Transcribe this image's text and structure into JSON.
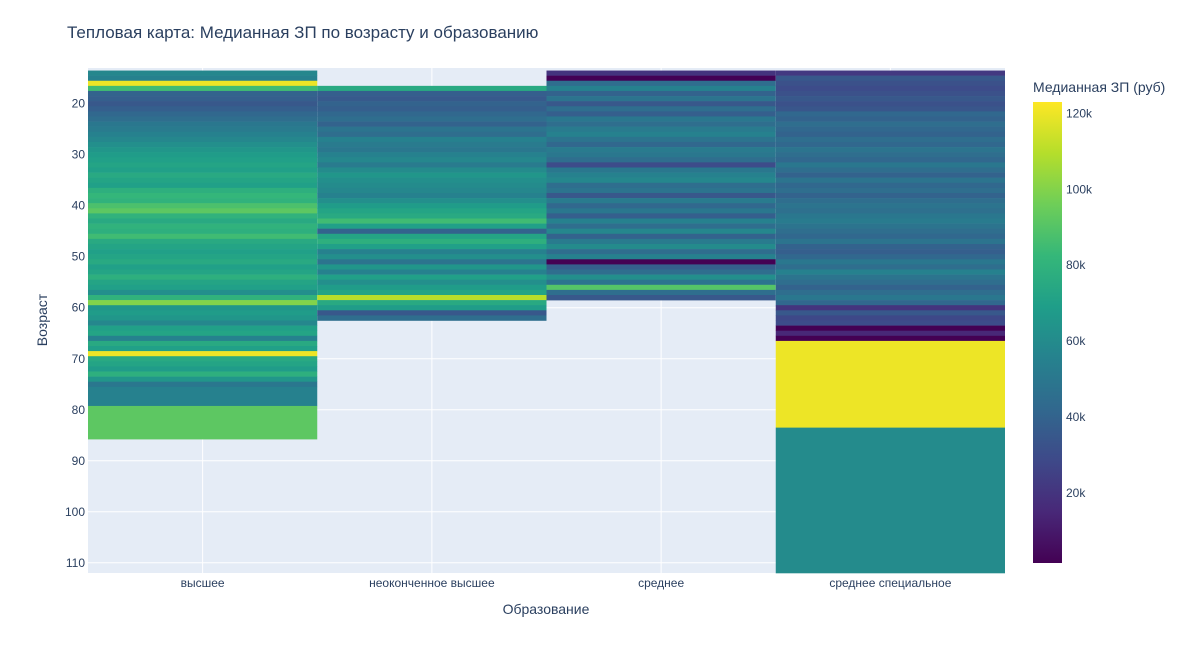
{
  "colors": {
    "background": "#ffffff",
    "plot_bg": "#e5ecf6",
    "grid": "#ffffff",
    "text": "#2a3f5f",
    "tick_text": "#506784",
    "viridis": [
      "#440154",
      "#482878",
      "#3e4989",
      "#31688e",
      "#26828e",
      "#1f9e89",
      "#35b779",
      "#6ece58",
      "#b5de2b",
      "#fde725"
    ]
  },
  "chart_data": {
    "type": "heatmap",
    "title": "Тепловая карта: Медианная ЗП по возрасту и образованию",
    "xlabel": "Образование",
    "ylabel": "Возраст",
    "categories": [
      "высшее",
      "неоконченное высшее",
      "среднее",
      "среднее специальное"
    ],
    "yticks": [
      20,
      30,
      40,
      50,
      60,
      70,
      80,
      90,
      100,
      110
    ],
    "ylim": [
      112,
      13
    ],
    "colorbar": {
      "title": "Медианная ЗП (руб)",
      "range": [
        1500,
        123000
      ],
      "ticks": [
        20000,
        40000,
        60000,
        80000,
        100000,
        120000
      ],
      "tick_labels": [
        "20k",
        "40k",
        "60k",
        "80k",
        "100k",
        "120k"
      ]
    },
    "grid": true,
    "columns": [
      {
        "name": "высшее",
        "cells": [
          [
            14,
            58000
          ],
          [
            15,
            55000
          ],
          [
            16,
            120000
          ],
          [
            17,
            85000
          ],
          [
            18,
            40000
          ],
          [
            19,
            38000
          ],
          [
            20,
            35000
          ],
          [
            21,
            38000
          ],
          [
            22,
            42000
          ],
          [
            23,
            45000
          ],
          [
            24,
            50000
          ],
          [
            25,
            52000
          ],
          [
            26,
            55000
          ],
          [
            27,
            58000
          ],
          [
            28,
            62000
          ],
          [
            29,
            65000
          ],
          [
            30,
            68000
          ],
          [
            31,
            70000
          ],
          [
            32,
            72000
          ],
          [
            33,
            70000
          ],
          [
            34,
            75000
          ],
          [
            35,
            72000
          ],
          [
            36,
            70000
          ],
          [
            37,
            78000
          ],
          [
            38,
            82000
          ],
          [
            39,
            80000
          ],
          [
            40,
            88000
          ],
          [
            41,
            92000
          ],
          [
            42,
            80000
          ],
          [
            43,
            75000
          ],
          [
            44,
            80000
          ],
          [
            45,
            78000
          ],
          [
            46,
            85000
          ],
          [
            47,
            75000
          ],
          [
            48,
            72000
          ],
          [
            49,
            70000
          ],
          [
            50,
            72000
          ],
          [
            51,
            75000
          ],
          [
            52,
            70000
          ],
          [
            53,
            72000
          ],
          [
            54,
            78000
          ],
          [
            55,
            72000
          ],
          [
            56,
            70000
          ],
          [
            57,
            62000
          ],
          [
            58,
            80000
          ],
          [
            59,
            100000
          ],
          [
            60,
            65000
          ],
          [
            61,
            68000
          ],
          [
            62,
            65000
          ],
          [
            63,
            58000
          ],
          [
            64,
            70000
          ],
          [
            65,
            72000
          ],
          [
            66,
            55000
          ],
          [
            67,
            75000
          ],
          [
            68,
            70000
          ],
          [
            69,
            120000
          ],
          [
            70,
            75000
          ],
          [
            71,
            72000
          ],
          [
            72,
            68000
          ],
          [
            73,
            78000
          ],
          [
            74,
            65000
          ],
          [
            75,
            50000
          ],
          [
            76,
            55000
          ],
          [
            82.5,
            92000
          ]
        ]
      },
      {
        "name": "неоконченное высшее",
        "cells": [
          [
            17,
            75000
          ],
          [
            18,
            38000
          ],
          [
            19,
            36000
          ],
          [
            20,
            40000
          ],
          [
            21,
            38000
          ],
          [
            22,
            42000
          ],
          [
            23,
            45000
          ],
          [
            24,
            40000
          ],
          [
            25,
            48000
          ],
          [
            26,
            45000
          ],
          [
            27,
            55000
          ],
          [
            28,
            52000
          ],
          [
            29,
            50000
          ],
          [
            30,
            55000
          ],
          [
            31,
            58000
          ],
          [
            32,
            52000
          ],
          [
            33,
            60000
          ],
          [
            34,
            65000
          ],
          [
            35,
            62000
          ],
          [
            36,
            60000
          ],
          [
            37,
            58000
          ],
          [
            38,
            55000
          ],
          [
            39,
            62000
          ],
          [
            40,
            68000
          ],
          [
            41,
            72000
          ],
          [
            42,
            75000
          ],
          [
            43,
            85000
          ],
          [
            44,
            70000
          ],
          [
            45,
            40000
          ],
          [
            46,
            72000
          ],
          [
            47,
            78000
          ],
          [
            48,
            70000
          ],
          [
            49,
            55000
          ],
          [
            50,
            62000
          ],
          [
            51,
            48000
          ],
          [
            52,
            65000
          ],
          [
            53,
            55000
          ],
          [
            54,
            70000
          ],
          [
            55,
            62000
          ],
          [
            56,
            68000
          ],
          [
            57,
            72000
          ],
          [
            58,
            110000
          ],
          [
            59,
            75000
          ],
          [
            60,
            68000
          ],
          [
            61,
            35000
          ],
          [
            62,
            45000
          ]
        ]
      },
      {
        "name": "среднее",
        "cells": [
          [
            14,
            20000
          ],
          [
            15,
            2000
          ],
          [
            16,
            45000
          ],
          [
            17,
            55000
          ],
          [
            18,
            40000
          ],
          [
            19,
            48000
          ],
          [
            20,
            35000
          ],
          [
            21,
            45000
          ],
          [
            22,
            38000
          ],
          [
            23,
            50000
          ],
          [
            24,
            45000
          ],
          [
            25,
            52000
          ],
          [
            26,
            55000
          ],
          [
            27,
            48000
          ],
          [
            28,
            42000
          ],
          [
            29,
            52000
          ],
          [
            30,
            50000
          ],
          [
            31,
            45000
          ],
          [
            32,
            30000
          ],
          [
            33,
            50000
          ],
          [
            34,
            55000
          ],
          [
            35,
            58000
          ],
          [
            36,
            45000
          ],
          [
            37,
            48000
          ],
          [
            38,
            35000
          ],
          [
            39,
            52000
          ],
          [
            40,
            42000
          ],
          [
            41,
            50000
          ],
          [
            42,
            38000
          ],
          [
            43,
            55000
          ],
          [
            44,
            45000
          ],
          [
            45,
            58000
          ],
          [
            46,
            40000
          ],
          [
            47,
            52000
          ],
          [
            48,
            60000
          ],
          [
            49,
            45000
          ],
          [
            50,
            55000
          ],
          [
            51,
            1500
          ],
          [
            52,
            38000
          ],
          [
            53,
            45000
          ],
          [
            54,
            62000
          ],
          [
            55,
            48000
          ],
          [
            56,
            90000
          ],
          [
            57,
            45000
          ],
          [
            58,
            35000
          ]
        ]
      },
      {
        "name": "среднее специальное",
        "cells": [
          [
            14,
            22000
          ],
          [
            15,
            35000
          ],
          [
            16,
            32000
          ],
          [
            17,
            30000
          ],
          [
            18,
            32000
          ],
          [
            19,
            35000
          ],
          [
            20,
            32000
          ],
          [
            21,
            34000
          ],
          [
            22,
            42000
          ],
          [
            23,
            40000
          ],
          [
            24,
            45000
          ],
          [
            25,
            42000
          ],
          [
            26,
            40000
          ],
          [
            27,
            45000
          ],
          [
            28,
            42000
          ],
          [
            29,
            48000
          ],
          [
            30,
            45000
          ],
          [
            31,
            42000
          ],
          [
            32,
            50000
          ],
          [
            33,
            45000
          ],
          [
            34,
            40000
          ],
          [
            35,
            48000
          ],
          [
            36,
            42000
          ],
          [
            37,
            45000
          ],
          [
            38,
            40000
          ],
          [
            39,
            45000
          ],
          [
            40,
            48000
          ],
          [
            41,
            46000
          ],
          [
            42,
            50000
          ],
          [
            43,
            52000
          ],
          [
            44,
            48000
          ],
          [
            45,
            45000
          ],
          [
            46,
            42000
          ],
          [
            47,
            48000
          ],
          [
            48,
            40000
          ],
          [
            49,
            38000
          ],
          [
            50,
            42000
          ],
          [
            51,
            50000
          ],
          [
            52,
            45000
          ],
          [
            53,
            55000
          ],
          [
            54,
            48000
          ],
          [
            55,
            45000
          ],
          [
            56,
            40000
          ],
          [
            57,
            45000
          ],
          [
            58,
            50000
          ],
          [
            59,
            42000
          ],
          [
            60,
            20000
          ],
          [
            61,
            35000
          ],
          [
            62,
            28000
          ],
          [
            63,
            30000
          ],
          [
            64,
            1500
          ],
          [
            65,
            15000
          ],
          [
            66,
            1500
          ],
          [
            67,
            120000
          ],
          [
            100,
            60000
          ]
        ]
      }
    ]
  }
}
